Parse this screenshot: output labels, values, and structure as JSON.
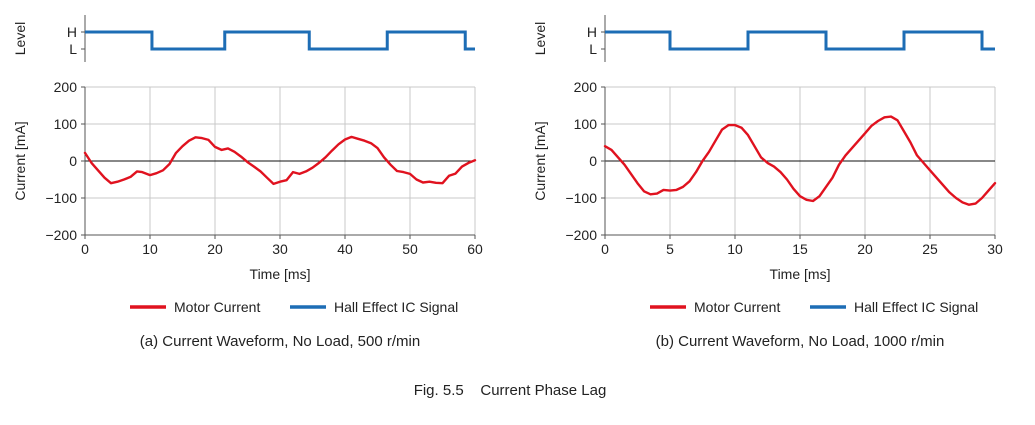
{
  "figure_caption": "Fig. 5.5    Current Phase Lag",
  "colors": {
    "motor": "#e0121f",
    "hall": "#1d6db5",
    "grid": "#c8c8c8",
    "axis": "#555555"
  },
  "legend": {
    "motor": "Motor Current",
    "hall": "Hall Effect IC Signal"
  },
  "chart_data": [
    {
      "type": "line",
      "caption": "(a) Current Waveform, No Load, 500 r/min",
      "xlabel": "Time [ms]",
      "ylabel": "Current [mA]",
      "level_label": "Level",
      "level_ticks": [
        "H",
        "L"
      ],
      "xlim": [
        0,
        60
      ],
      "xticks": [
        0,
        10,
        20,
        30,
        40,
        50,
        60
      ],
      "ylim": [
        -200,
        200
      ],
      "yticks": [
        200,
        100,
        0,
        -100,
        -200
      ],
      "ytick_labels": [
        "200",
        "100",
        "0",
        "−100",
        "−200"
      ],
      "grid": true,
      "legend_position": "bottom",
      "series": [
        {
          "name": "Motor Current",
          "x": [
            0,
            1,
            2,
            3,
            4,
            5,
            6,
            7,
            8,
            8.8,
            10,
            11,
            12,
            13,
            14,
            15,
            16,
            17,
            18,
            19,
            20,
            21,
            22,
            23,
            24,
            25,
            26,
            27,
            28,
            29,
            30,
            31,
            32,
            33,
            34,
            35,
            36,
            37,
            38,
            39,
            40,
            41,
            42,
            43,
            44,
            45,
            46,
            47,
            48,
            49,
            50,
            51,
            52,
            53,
            54,
            55,
            56,
            57,
            58,
            59,
            60
          ],
          "y": [
            22,
            -5,
            -25,
            -45,
            -60,
            -56,
            -50,
            -43,
            -28,
            -30,
            -38,
            -33,
            -25,
            -8,
            22,
            40,
            55,
            64,
            62,
            57,
            38,
            30,
            34,
            25,
            12,
            -3,
            -15,
            -28,
            -45,
            -62,
            -56,
            -52,
            -30,
            -35,
            -28,
            -18,
            -5,
            10,
            28,
            45,
            58,
            65,
            60,
            55,
            48,
            35,
            10,
            -10,
            -27,
            -30,
            -35,
            -50,
            -58,
            -56,
            -59,
            -60,
            -40,
            -34,
            -15,
            -5,
            2
          ]
        },
        {
          "name": "Hall Effect IC Signal",
          "levels": [
            {
              "from": 0,
              "to": 10.3,
              "level": "H"
            },
            {
              "from": 10.3,
              "to": 21.5,
              "level": "L"
            },
            {
              "from": 21.5,
              "to": 34.5,
              "level": "H"
            },
            {
              "from": 34.5,
              "to": 46.5,
              "level": "L"
            },
            {
              "from": 46.5,
              "to": 58.5,
              "level": "H"
            },
            {
              "from": 58.5,
              "to": 60,
              "level": "L"
            }
          ]
        }
      ]
    },
    {
      "type": "line",
      "caption": "(b) Current Waveform, No Load, 1000 r/min",
      "xlabel": "Time [ms]",
      "ylabel": "Current [mA]",
      "level_label": "Level",
      "level_ticks": [
        "H",
        "L"
      ],
      "xlim": [
        0,
        30
      ],
      "xticks": [
        0,
        5,
        10,
        15,
        20,
        25,
        30
      ],
      "ylim": [
        -200,
        200
      ],
      "yticks": [
        200,
        100,
        0,
        -100,
        -200
      ],
      "ytick_labels": [
        "200",
        "100",
        "0",
        "−100",
        "−200"
      ],
      "grid": true,
      "legend_position": "bottom",
      "series": [
        {
          "name": "Motor Current",
          "x": [
            0,
            0.5,
            1,
            1.5,
            2,
            2.5,
            3,
            3.5,
            4,
            4.5,
            5,
            5.5,
            6,
            6.5,
            7,
            7.5,
            8,
            8.5,
            9,
            9.5,
            10,
            10.5,
            11,
            11.5,
            12,
            12.5,
            13,
            13.5,
            14,
            14.5,
            15,
            15.5,
            16,
            16.5,
            17,
            17.5,
            18,
            18.5,
            19,
            19.5,
            20,
            20.5,
            21,
            21.5,
            22,
            22.5,
            23,
            23.5,
            24,
            24.5,
            25,
            25.5,
            26,
            26.5,
            27,
            27.5,
            28,
            28.5,
            29,
            29.5,
            30
          ],
          "y": [
            40,
            30,
            10,
            -10,
            -35,
            -60,
            -82,
            -90,
            -88,
            -78,
            -80,
            -78,
            -70,
            -55,
            -30,
            0,
            25,
            55,
            85,
            97,
            97,
            90,
            70,
            40,
            10,
            -5,
            -15,
            -30,
            -50,
            -75,
            -95,
            -105,
            -108,
            -95,
            -70,
            -45,
            -10,
            15,
            35,
            55,
            75,
            95,
            108,
            118,
            120,
            110,
            80,
            50,
            15,
            -5,
            -25,
            -45,
            -65,
            -85,
            -100,
            -112,
            -118,
            -115,
            -100,
            -80,
            -60
          ]
        },
        {
          "name": "Hall Effect IC Signal",
          "levels": [
            {
              "from": 0,
              "to": 5,
              "level": "H"
            },
            {
              "from": 5,
              "to": 11,
              "level": "L"
            },
            {
              "from": 11,
              "to": 17,
              "level": "H"
            },
            {
              "from": 17,
              "to": 23,
              "level": "L"
            },
            {
              "from": 23,
              "to": 29,
              "level": "H"
            },
            {
              "from": 29,
              "to": 30,
              "level": "L"
            }
          ]
        }
      ]
    }
  ]
}
